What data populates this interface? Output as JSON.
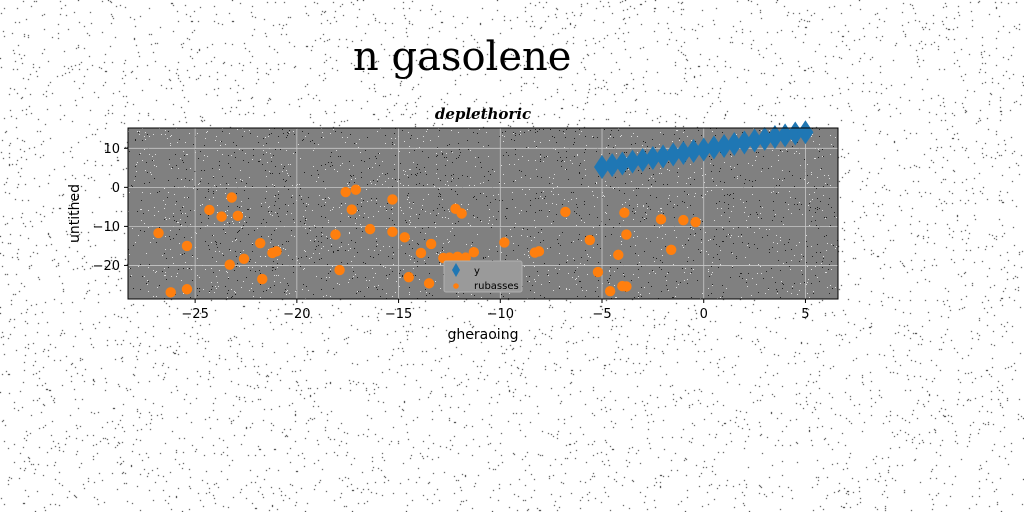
{
  "figure_title": "n gasolene",
  "chart_data": {
    "type": "scatter",
    "title": "deplethoric",
    "xlabel": "gheraoing",
    "ylabel": "untithed",
    "xlim": [
      -28.3,
      6.6
    ],
    "ylim": [
      -28.6,
      15.2
    ],
    "xticks": [
      -25,
      -20,
      -15,
      -10,
      -5,
      0,
      5
    ],
    "xtick_labels": [
      "−25",
      "−20",
      "−15",
      "−10",
      "−5",
      "0",
      "5"
    ],
    "yticks": [
      10,
      0,
      -10,
      -20
    ],
    "ytick_labels": [
      "10",
      "0",
      "−10",
      "−20"
    ],
    "grid": true,
    "background": "#808080",
    "legend_position": "lower-center",
    "series": [
      {
        "name": "y",
        "marker": "diamond",
        "color": "#1f77b4",
        "x": [
          -5.0,
          -4.5,
          -4.0,
          -3.5,
          -3.0,
          -2.5,
          -2.0,
          -1.5,
          -1.0,
          -0.5,
          0.0,
          0.5,
          1.0,
          1.5,
          2.0,
          2.5,
          3.0,
          3.5,
          4.0,
          4.5,
          5.0
        ],
        "y": [
          5.2,
          5.7,
          6.1,
          6.6,
          7.0,
          7.5,
          7.9,
          8.4,
          8.8,
          9.3,
          9.7,
          10.2,
          10.6,
          11.1,
          11.5,
          12.0,
          12.4,
          12.9,
          13.3,
          13.8,
          14.1
        ]
      },
      {
        "name": "rubasses",
        "marker": "circle",
        "color": "#ff7f0e",
        "x": [
          -26.8,
          -26.2,
          -25.4,
          -25.4,
          -24.3,
          -23.7,
          -23.3,
          -23.2,
          -22.9,
          -22.6,
          -21.8,
          -21.7,
          -21.2,
          -21.0,
          -18.1,
          -17.9,
          -17.6,
          -17.3,
          -17.1,
          -16.4,
          -15.3,
          -15.3,
          -14.7,
          -14.5,
          -13.9,
          -13.5,
          -13.4,
          -12.8,
          -12.5,
          -12.2,
          -12.1,
          -11.9,
          -11.7,
          -11.3,
          -9.8,
          -8.3,
          -8.1,
          -6.8,
          -5.6,
          -5.2,
          -4.6,
          -4.2,
          -4.0,
          -3.9,
          -3.8,
          -3.8,
          -2.1,
          -1.6,
          -1.0,
          -0.4
        ],
        "y": [
          -11.7,
          -26.9,
          -15.0,
          -26.1,
          -5.8,
          -7.5,
          -19.8,
          -2.6,
          -7.3,
          -18.3,
          -14.3,
          -23.5,
          -16.8,
          -16.4,
          -12.1,
          -21.2,
          -1.2,
          -5.7,
          -0.6,
          -10.7,
          -3.1,
          -11.4,
          -12.8,
          -23.0,
          -16.8,
          -24.6,
          -14.5,
          -18.1,
          -18.0,
          -5.5,
          -17.8,
          -6.7,
          -18.0,
          -16.6,
          -14.1,
          -16.7,
          -16.4,
          -6.3,
          -13.5,
          -21.7,
          -26.6,
          -17.3,
          -25.3,
          -6.5,
          -12.1,
          -25.4,
          -8.2,
          -16.0,
          -8.4,
          -8.9
        ]
      }
    ]
  }
}
